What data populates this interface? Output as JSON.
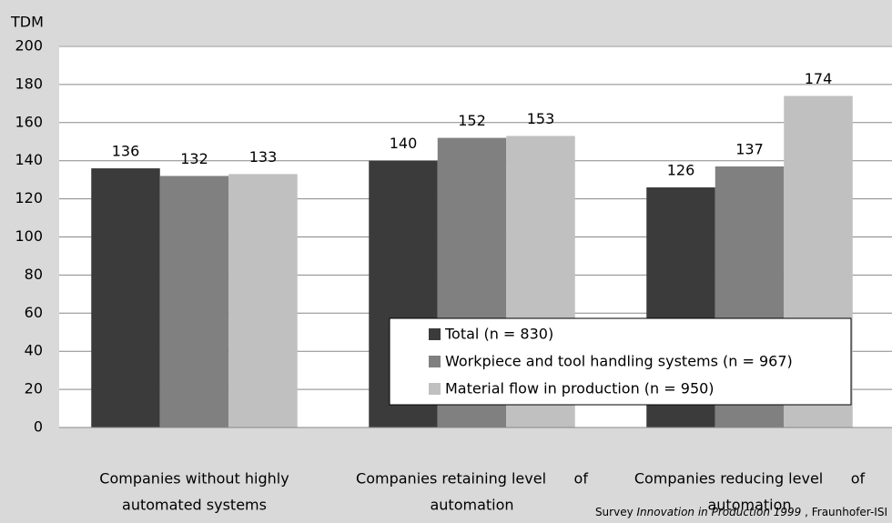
{
  "chart_data": {
    "type": "bar",
    "ylabel": "TDM",
    "categories": [
      [
        "Companies without highly",
        "automated systems"
      ],
      [
        "Companies retaining level      of",
        "automation"
      ],
      [
        "Companies reducing level      of",
        "automation"
      ]
    ],
    "series": [
      {
        "name": "Total (n = 830)",
        "color": "#3b3b3b",
        "values": [
          136,
          140,
          126
        ]
      },
      {
        "name": "Workpiece and tool handling systems (n = 967)",
        "color": "#808080",
        "values": [
          132,
          152,
          137
        ]
      },
      {
        "name": "Material flow in production (n = 950)",
        "color": "#c0c0c0",
        "values": [
          133,
          153,
          174
        ]
      }
    ],
    "ylim": [
      0,
      200
    ],
    "yticks": [
      0,
      20,
      40,
      60,
      80,
      100,
      120,
      140,
      160,
      180,
      200
    ],
    "grid": true,
    "legend": "lower right",
    "source": [
      "Survey ",
      "Innovation in Production 1999",
      " , Fraunhofer-ISI"
    ]
  }
}
